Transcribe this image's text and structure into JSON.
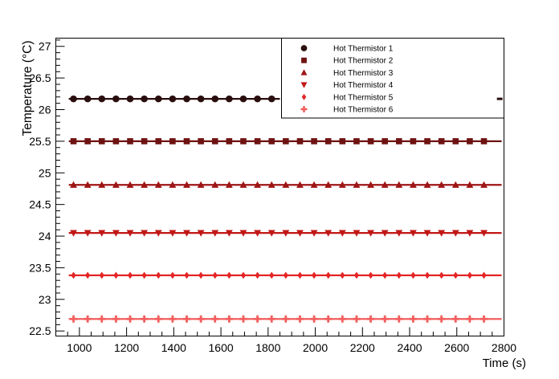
{
  "chart_data": {
    "type": "scatter",
    "title": "",
    "xlabel": "Time (s)",
    "ylabel": "Temperature (°C)",
    "xlim": [
      900,
      2800
    ],
    "ylim": [
      22.42,
      27.13
    ],
    "grid": false,
    "x_major_ticks": [
      1000,
      1200,
      1400,
      1600,
      1800,
      2000,
      2200,
      2400,
      2600,
      2800
    ],
    "x_tick_labels": [
      "1000",
      "1200",
      "1400",
      "1600",
      "1800",
      "2000",
      "2200",
      "2400",
      "2600",
      "2800"
    ],
    "x_minor_step": 50,
    "y_major_ticks": [
      22.5,
      23,
      23.5,
      24,
      24.5,
      25,
      25.5,
      26,
      26.5,
      27
    ],
    "y_tick_labels": [
      "22.5",
      "23",
      "23.5",
      "24",
      "24.5",
      "25",
      "25.5",
      "26",
      "26.5",
      "27"
    ],
    "y_minor_step": 0.1,
    "legend": {
      "position": "top-right"
    },
    "series": [
      {
        "name": "Hot Thermistor 1",
        "marker": "circle",
        "color": "#2a0e0e",
        "temperature_c": 26.17,
        "t_points": [
          975,
          1035,
          1095,
          1155,
          1215,
          1275,
          1335,
          1395,
          1455,
          1515,
          1575,
          1635,
          1695,
          1755,
          1815
        ],
        "fit_line": {
          "t_start": 955,
          "t_end": 1850
        },
        "extra_segment": {
          "t_start": 2770,
          "t_end": 2794
        }
      },
      {
        "name": "Hot Thermistor 2",
        "marker": "square",
        "color": "#6e1212",
        "temperature_c": 25.5,
        "t_points": [
          975,
          1035,
          1095,
          1155,
          1215,
          1275,
          1335,
          1395,
          1455,
          1515,
          1575,
          1635,
          1695,
          1755,
          1815,
          1875,
          1935,
          1995,
          2055,
          2115,
          2175,
          2235,
          2295,
          2355,
          2415,
          2475,
          2535,
          2595,
          2655,
          2715
        ],
        "fit_line": {
          "t_start": 955,
          "t_end": 2790
        }
      },
      {
        "name": "Hot Thermistor 3",
        "marker": "triangle-up",
        "color": "#9e1515",
        "temperature_c": 24.81,
        "t_points": [
          975,
          1035,
          1095,
          1155,
          1215,
          1275,
          1335,
          1395,
          1455,
          1515,
          1575,
          1635,
          1695,
          1755,
          1815,
          1875,
          1935,
          1995,
          2055,
          2115,
          2175,
          2235,
          2295,
          2355,
          2415,
          2475,
          2535,
          2595,
          2655,
          2715
        ],
        "fit_line": {
          "t_start": 955,
          "t_end": 2790
        }
      },
      {
        "name": "Hot Thermistor 4",
        "marker": "triangle-down",
        "color": "#c21717",
        "temperature_c": 24.05,
        "t_points": [
          975,
          1035,
          1095,
          1155,
          1215,
          1275,
          1335,
          1395,
          1455,
          1515,
          1575,
          1635,
          1695,
          1755,
          1815,
          1875,
          1935,
          1995,
          2055,
          2115,
          2175,
          2235,
          2295,
          2355,
          2415,
          2475,
          2535,
          2595,
          2655,
          2715
        ],
        "fit_line": {
          "t_start": 955,
          "t_end": 2790
        }
      },
      {
        "name": "Hot Thermistor 5",
        "marker": "diamond",
        "color": "#e52525",
        "temperature_c": 23.38,
        "t_points": [
          975,
          1035,
          1095,
          1155,
          1215,
          1275,
          1335,
          1395,
          1455,
          1515,
          1575,
          1635,
          1695,
          1755,
          1815,
          1875,
          1935,
          1995,
          2055,
          2115,
          2175,
          2235,
          2295,
          2355,
          2415,
          2475,
          2535,
          2595,
          2655,
          2715
        ],
        "fit_line": {
          "t_start": 955,
          "t_end": 2790
        }
      },
      {
        "name": "Hot Thermistor 6",
        "marker": "plus",
        "color": "#f25e5e",
        "temperature_c": 22.69,
        "t_points": [
          975,
          1035,
          1095,
          1155,
          1215,
          1275,
          1335,
          1395,
          1455,
          1515,
          1575,
          1635,
          1695,
          1755,
          1815,
          1875,
          1935,
          1995,
          2055,
          2115,
          2175,
          2235,
          2295,
          2355,
          2415,
          2475,
          2535,
          2595,
          2655,
          2715
        ],
        "fit_line": {
          "t_start": 955,
          "t_end": 2790
        }
      }
    ]
  }
}
